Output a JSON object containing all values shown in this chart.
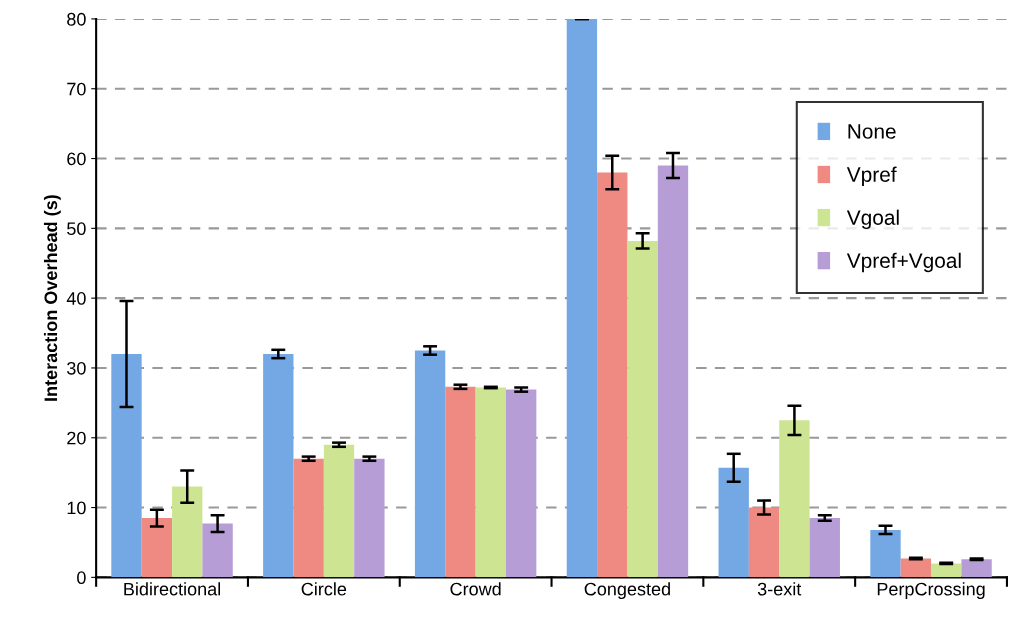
{
  "chart_data": {
    "type": "bar",
    "ylabel": "Interaction Overhead (s)",
    "categories": [
      "Bidirectional",
      "Circle",
      "Crowd",
      "Congested",
      "3-exit",
      "PerpCrossing"
    ],
    "series": [
      {
        "name": "None",
        "color": "#74a8e4",
        "values": [
          32,
          32,
          32.5,
          80,
          15.7,
          6.8
        ],
        "errors": [
          7.6,
          0.6,
          0.6,
          null,
          2.0,
          0.6
        ]
      },
      {
        "name": "Vpref",
        "color": "#ee8a82",
        "values": [
          8.5,
          17,
          27.3,
          58,
          10,
          2.7
        ],
        "errors": [
          1.2,
          0.3,
          0.3,
          2.4,
          1.0,
          0.1
        ]
      },
      {
        "name": "Vgoal",
        "color": "#cde592",
        "values": [
          13,
          19,
          27.2,
          48.2,
          22.5,
          2.0
        ],
        "errors": [
          2.3,
          0.3,
          0.1,
          1.1,
          2.1,
          0.1
        ]
      },
      {
        "name": "Vpref+Vgoal",
        "color": "#b79dd5",
        "values": [
          7.7,
          17,
          26.9,
          59,
          8.5,
          2.6
        ],
        "errors": [
          1.2,
          0.3,
          0.3,
          1.8,
          0.4,
          0.1
        ]
      }
    ],
    "ylim": [
      0,
      80
    ],
    "yticks": [
      0,
      10,
      20,
      30,
      40,
      50,
      60,
      70,
      80
    ],
    "grid": "y",
    "legend": "top right"
  }
}
